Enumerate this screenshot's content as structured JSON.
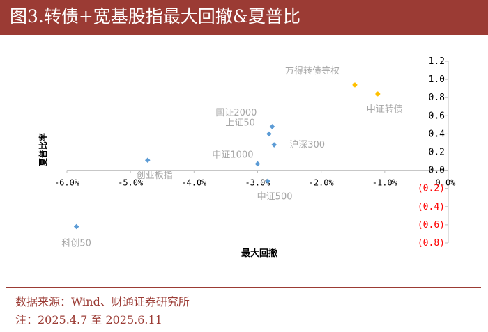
{
  "title": "图3.转债+宽基股指最大回撤&夏普比",
  "footer": {
    "source": "数据来源：Wind、财通证券研究所",
    "note": "注：2025.4.7 至 2025.6.11"
  },
  "colors": {
    "title_bg": "#9b3b34",
    "index_series": "#5b9bd5",
    "cb_series": "#ffc000",
    "negative_tick": "#ff0000",
    "label_gray": "#a6a6a6"
  },
  "chart_data": {
    "type": "scatter",
    "xlabel": "最大回撤",
    "ylabel": "夏普比率",
    "xlim": [
      -0.06,
      0.0
    ],
    "ylim": [
      -0.8,
      1.2
    ],
    "x_ticks": [
      {
        "value": -0.06,
        "label": "-6.0%"
      },
      {
        "value": -0.05,
        "label": "-5.0%"
      },
      {
        "value": -0.04,
        "label": "-4.0%"
      },
      {
        "value": -0.03,
        "label": "-3.0%"
      },
      {
        "value": -0.02,
        "label": "-2.0%"
      },
      {
        "value": -0.01,
        "label": "-1.0%"
      },
      {
        "value": 0.0,
        "label": "0.0%"
      }
    ],
    "y_ticks": [
      {
        "value": 1.2,
        "label": "1.2",
        "negative": false
      },
      {
        "value": 1.0,
        "label": "1.0",
        "negative": false
      },
      {
        "value": 0.8,
        "label": "0.8",
        "negative": false
      },
      {
        "value": 0.6,
        "label": "0.6",
        "negative": false
      },
      {
        "value": 0.4,
        "label": "0.4",
        "negative": false
      },
      {
        "value": 0.2,
        "label": "0.2",
        "negative": false
      },
      {
        "value": 0.0,
        "label": "0.0",
        "negative": false
      },
      {
        "value": -0.2,
        "label": "(0.2)",
        "negative": true
      },
      {
        "value": -0.4,
        "label": "(0.4)",
        "negative": true
      },
      {
        "value": -0.6,
        "label": "(0.6)",
        "negative": true
      },
      {
        "value": -0.8,
        "label": "(0.8)",
        "negative": true
      }
    ],
    "series": [
      {
        "color": "#5b9bd5",
        "points": [
          {
            "label": "国证2000",
            "x": -0.0277,
            "y": 0.48,
            "label_pos": "above-left"
          },
          {
            "label": "上证50",
            "x": -0.0282,
            "y": 0.4,
            "label_pos": "upper-left"
          },
          {
            "label": "沪深300",
            "x": -0.0274,
            "y": 0.28,
            "label_pos": "right"
          },
          {
            "label": "中证1000",
            "x": -0.03,
            "y": 0.07,
            "label_pos": "left"
          },
          {
            "label": "中证500",
            "x": -0.0284,
            "y": -0.12,
            "label_pos": "below"
          },
          {
            "label": "创业板指",
            "x": -0.0473,
            "y": 0.11,
            "label_pos": "below"
          },
          {
            "label": "科创50",
            "x": -0.0585,
            "y": -0.62,
            "label_pos": "below-left"
          }
        ]
      },
      {
        "color": "#ffc000",
        "points": [
          {
            "label": "万得转债等权",
            "x": -0.0147,
            "y": 0.94,
            "label_pos": "above-left"
          },
          {
            "label": "中证转债",
            "x": -0.0111,
            "y": 0.84,
            "label_pos": "below"
          }
        ]
      }
    ]
  }
}
